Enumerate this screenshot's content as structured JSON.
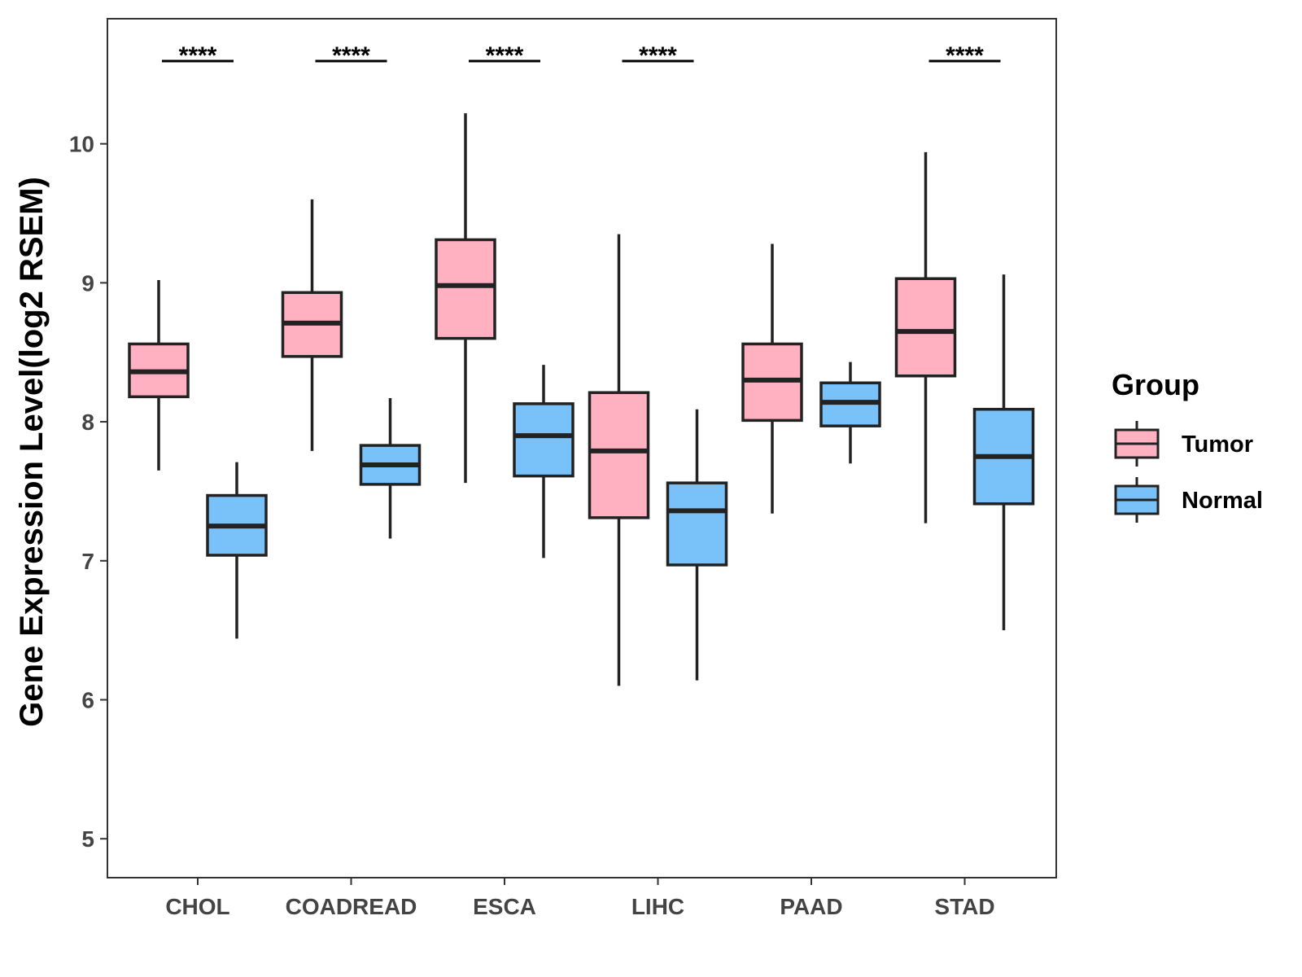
{
  "chart_data": {
    "type": "boxplot",
    "title": "",
    "xlabel": "",
    "ylabel": "Gene Expression Level(log2 RSEM)",
    "ylim": [
      4.72,
      10.9
    ],
    "yticks": [
      5,
      6,
      7,
      8,
      9,
      10
    ],
    "categories": [
      "CHOL",
      "COADREAD",
      "ESCA",
      "LIHC",
      "PAAD",
      "STAD"
    ],
    "series": [
      {
        "name": "Tumor",
        "color": "#FFB0C1",
        "boxes": [
          {
            "min": 7.65,
            "q1": 8.18,
            "median": 8.36,
            "q3": 8.56,
            "max": 9.02
          },
          {
            "min": 7.79,
            "q1": 8.47,
            "median": 8.71,
            "q3": 8.93,
            "max": 9.6
          },
          {
            "min": 7.56,
            "q1": 8.6,
            "median": 8.98,
            "q3": 9.31,
            "max": 10.22
          },
          {
            "min": 6.1,
            "q1": 7.31,
            "median": 7.79,
            "q3": 8.21,
            "max": 9.35
          },
          {
            "min": 7.34,
            "q1": 8.01,
            "median": 8.3,
            "q3": 8.56,
            "max": 9.28
          },
          {
            "min": 7.27,
            "q1": 8.33,
            "median": 8.65,
            "q3": 9.03,
            "max": 9.94
          }
        ]
      },
      {
        "name": "Normal",
        "color": "#78C1F9",
        "boxes": [
          {
            "min": 6.44,
            "q1": 7.04,
            "median": 7.25,
            "q3": 7.47,
            "max": 7.71
          },
          {
            "min": 7.16,
            "q1": 7.55,
            "median": 7.69,
            "q3": 7.83,
            "max": 8.17
          },
          {
            "min": 7.02,
            "q1": 7.61,
            "median": 7.9,
            "q3": 8.13,
            "max": 8.41
          },
          {
            "min": 6.14,
            "q1": 6.97,
            "median": 7.36,
            "q3": 7.56,
            "max": 8.09
          },
          {
            "min": 7.7,
            "q1": 7.97,
            "median": 8.14,
            "q3": 8.28,
            "max": 8.43
          },
          {
            "min": 6.5,
            "q1": 7.41,
            "median": 7.75,
            "q3": 8.09,
            "max": 9.06
          }
        ]
      }
    ],
    "significance": [
      "****",
      "****",
      "****",
      "****",
      "",
      "****"
    ],
    "legend": {
      "title": "Group",
      "position": "right"
    },
    "grid": false
  }
}
